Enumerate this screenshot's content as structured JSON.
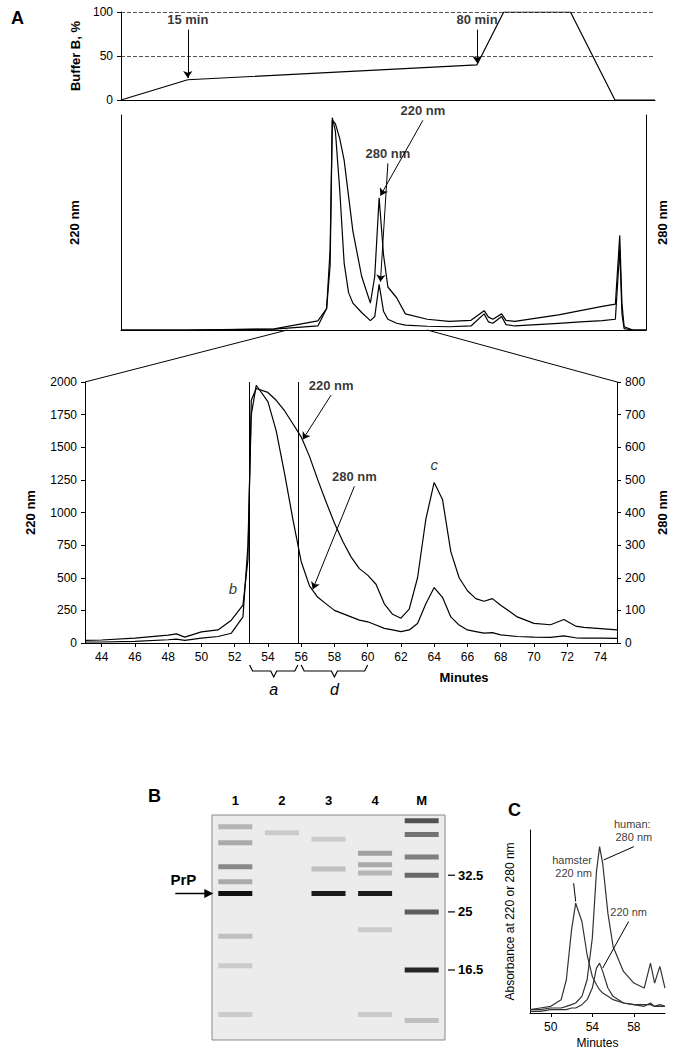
{
  "chart_data": [
    {
      "panel": "A",
      "type": "line",
      "x": [
        0,
        15,
        80,
        86,
        101,
        111,
        120
      ],
      "values": [
        0,
        23,
        40,
        100,
        100,
        0,
        0
      ],
      "color": "#000000",
      "xlim": [
        0,
        120
      ],
      "ylim": [
        0,
        100
      ],
      "yticks": [
        0,
        50,
        100
      ],
      "y_label": "Buffer B, %",
      "grid": true,
      "tick_labels": "y",
      "annotations": [
        {
          "text": "15 min",
          "at": [
            15,
            80
          ],
          "points_to": [
            15,
            25
          ]
        },
        {
          "text": "80 min",
          "at": [
            80,
            80
          ],
          "points_to": [
            80,
            42
          ]
        }
      ]
    },
    {
      "type": "line",
      "color": "#000000",
      "x": [
        5,
        20,
        40,
        50,
        52,
        52.8,
        53.3,
        54,
        55,
        56,
        57,
        58,
        60,
        62,
        63,
        64,
        65,
        66,
        68,
        70,
        75,
        80,
        85,
        88,
        89,
        90,
        92,
        93,
        95,
        100,
        105,
        110,
        115,
        118,
        119,
        119.5,
        120,
        122,
        125
      ],
      "series": [
        {
          "name": "220 nm",
          "values": [
            0,
            0,
            10,
            85,
            200,
            600,
            1950,
            1920,
            1780,
            1580,
            1250,
            920,
            500,
            250,
            500,
            1230,
            700,
            400,
            300,
            150,
            100,
            80,
            90,
            180,
            120,
            100,
            150,
            90,
            80,
            110,
            140,
            180,
            220,
            240,
            880,
            250,
            30,
            0,
            0
          ],
          "label_at": [
            74,
            1950
          ],
          "points_to": [
            64.3,
            1250
          ]
        },
        {
          "name": "280 nm",
          "axis": "y2",
          "values": [
            0,
            0,
            3,
            15,
            80,
            300,
            790,
            740,
            520,
            250,
            140,
            100,
            65,
            35,
            50,
            170,
            70,
            40,
            25,
            18,
            14,
            12,
            15,
            60,
            30,
            25,
            50,
            20,
            15,
            20,
            25,
            30,
            35,
            40,
            300,
            60,
            5,
            0,
            0
          ],
          "label_at": [
            66,
            620
          ],
          "points_to": [
            64.3,
            180
          ]
        }
      ],
      "xlim": [
        5,
        125
      ],
      "ylim": [
        0,
        2000
      ],
      "y2lim": [
        0,
        800
      ],
      "y_label": "220 nm",
      "y2_label": "280 nm",
      "tick_labels": false
    },
    {
      "type": "line",
      "color": "#000000",
      "x": [
        43,
        44,
        46,
        48,
        48.5,
        49,
        50,
        51,
        51.8,
        52.5,
        52.8,
        53,
        53.3,
        54,
        54.5,
        55,
        55.5,
        56,
        56.5,
        57,
        57.5,
        58,
        58.5,
        59,
        59.5,
        60,
        60.5,
        61,
        61.5,
        62,
        62.5,
        63,
        63.5,
        64,
        64.5,
        65,
        65.5,
        66,
        66.5,
        67,
        67.5,
        68,
        69,
        70,
        71,
        71.8,
        72.5,
        73,
        74,
        75
      ],
      "series": [
        {
          "name": "220 nm",
          "values": [
            20,
            23,
            38,
            60,
            70,
            45,
            85,
            100,
            175,
            290,
            640,
            1860,
            1950,
            1920,
            1860,
            1780,
            1680,
            1580,
            1430,
            1250,
            1080,
            920,
            780,
            660,
            570,
            520,
            450,
            300,
            220,
            190,
            260,
            500,
            950,
            1230,
            1100,
            700,
            500,
            400,
            340,
            320,
            340,
            290,
            200,
            150,
            140,
            180,
            130,
            120,
            110,
            100
          ],
          "label_at": [
            57.8,
            1900
          ],
          "points_to": [
            56.1,
            1560
          ]
        },
        {
          "name": "280 nm",
          "axis": "y2",
          "values": [
            3,
            3,
            5,
            10,
            12,
            8,
            15,
            20,
            30,
            80,
            300,
            700,
            790,
            740,
            650,
            520,
            380,
            250,
            175,
            140,
            120,
            100,
            90,
            80,
            70,
            65,
            55,
            45,
            40,
            35,
            40,
            60,
            120,
            170,
            140,
            80,
            55,
            40,
            35,
            30,
            32,
            25,
            20,
            18,
            17,
            22,
            16,
            15,
            15,
            14
          ],
          "label_at": [
            59.2,
            480
          ],
          "points_to": [
            56.7,
            165
          ]
        }
      ],
      "xlim": [
        43,
        75
      ],
      "xticks": [
        44,
        46,
        48,
        50,
        52,
        54,
        56,
        58,
        60,
        62,
        64,
        66,
        68,
        70,
        72,
        74
      ],
      "ylim": [
        0,
        2000
      ],
      "yticks": [
        0,
        250,
        500,
        750,
        1000,
        1250,
        1500,
        1750,
        2000
      ],
      "y2lim": [
        0,
        800
      ],
      "y2ticks": [
        0,
        100,
        200,
        300,
        400,
        500,
        600,
        700,
        800
      ],
      "x_label": "Minutes",
      "y_label": "220 nm",
      "y2_label": "280 nm",
      "annotations": [
        {
          "text": "b",
          "at": [
            51.9,
            330
          ]
        },
        {
          "text": "c",
          "at": [
            64,
            1280
          ]
        }
      ],
      "fractions": [
        {
          "label": "a",
          "from": 52.9,
          "to": 55.8
        },
        {
          "label": "d",
          "from": 56,
          "to": 60
        }
      ],
      "fraction_lines": [
        52.9,
        55.8
      ]
    },
    {
      "panel": "B",
      "type": "gel",
      "categories": [
        "1",
        "2",
        "3",
        "4",
        "M"
      ],
      "log": "y",
      "ylim": [
        10,
        50
      ],
      "yticks": [
        32.5,
        25,
        16.5
      ],
      "bands": [
        {
          "lane": "1",
          "kda": 46,
          "intensity": 0.25
        },
        {
          "lane": "1",
          "kda": 41,
          "intensity": 0.3
        },
        {
          "lane": "1",
          "kda": 34.5,
          "intensity": 0.45
        },
        {
          "lane": "1",
          "kda": 31,
          "intensity": 0.3
        },
        {
          "lane": "1",
          "kda": 28.5,
          "intensity": 1
        },
        {
          "lane": "1",
          "kda": 21,
          "intensity": 0.2
        },
        {
          "lane": "1",
          "kda": 17,
          "intensity": 0.15
        },
        {
          "lane": "1",
          "kda": 12,
          "intensity": 0.15
        },
        {
          "lane": "2",
          "kda": 44,
          "intensity": 0.15
        },
        {
          "lane": "3",
          "kda": 42,
          "intensity": 0.15
        },
        {
          "lane": "3",
          "kda": 34,
          "intensity": 0.2
        },
        {
          "lane": "3",
          "kda": 28.5,
          "intensity": 0.95
        },
        {
          "lane": "4",
          "kda": 38,
          "intensity": 0.35
        },
        {
          "lane": "4",
          "kda": 35,
          "intensity": 0.3
        },
        {
          "lane": "4",
          "kda": 33,
          "intensity": 0.25
        },
        {
          "lane": "4",
          "kda": 28.5,
          "intensity": 0.95
        },
        {
          "lane": "4",
          "kda": 22,
          "intensity": 0.15
        },
        {
          "lane": "4",
          "kda": 12,
          "intensity": 0.15
        },
        {
          "lane": "M",
          "kda": 48,
          "intensity": 0.7
        },
        {
          "lane": "M",
          "kda": 43.5,
          "intensity": 0.55
        },
        {
          "lane": "M",
          "kda": 37,
          "intensity": 0.5
        },
        {
          "lane": "M",
          "kda": 32.5,
          "intensity": 0.6
        },
        {
          "lane": "M",
          "kda": 25,
          "intensity": 0.65
        },
        {
          "lane": "M",
          "kda": 16.5,
          "intensity": 0.9
        },
        {
          "lane": "M",
          "kda": 11.5,
          "intensity": 0.2
        }
      ],
      "annotations": [
        {
          "text": "PrP",
          "points_to": [
            "1",
            28.5
          ]
        }
      ]
    },
    {
      "panel": "C",
      "type": "line",
      "color": "#333333",
      "x": [
        48,
        49,
        50,
        51,
        51.5,
        52,
        52.4,
        53,
        53.5,
        54,
        54.4,
        54.7,
        55,
        55.5,
        56,
        57,
        58,
        59,
        59.6,
        60,
        60.5,
        61
      ],
      "series": [
        {
          "name": "hamster 220 nm",
          "values": [
            0.02,
            0.03,
            0.04,
            0.08,
            0.2,
            0.5,
            0.66,
            0.55,
            0.35,
            0.22,
            0.17,
            0.14,
            0.12,
            0.1,
            0.08,
            0.06,
            0.05,
            0.05,
            0.05,
            0.04,
            0.04,
            0.04
          ],
          "label_at": [
            52.2,
            0.78
          ],
          "points_to": [
            52.4,
            0.67
          ]
        },
        {
          "name": "human: 280 nm",
          "values": [
            0.02,
            0.02,
            0.03,
            0.03,
            0.04,
            0.05,
            0.06,
            0.1,
            0.2,
            0.45,
            0.85,
            1.0,
            0.9,
            0.6,
            0.4,
            0.25,
            0.18,
            0.15,
            0.3,
            0.18,
            0.28,
            0.15
          ],
          "label_at": [
            58,
            1.0
          ],
          "points_to": [
            55.1,
            0.92
          ]
        },
        {
          "name": "220 nm",
          "values": [
            0.01,
            0.01,
            0.02,
            0.02,
            0.02,
            0.03,
            0.03,
            0.05,
            0.08,
            0.15,
            0.27,
            0.3,
            0.25,
            0.15,
            0.1,
            0.06,
            0.05,
            0.04,
            0.06,
            0.04,
            0.05,
            0.04
          ],
          "label_at": [
            57.5,
            0.55
          ],
          "points_to": [
            55,
            0.27
          ]
        }
      ],
      "xlim": [
        48,
        61
      ],
      "xticks": [
        50,
        54,
        58
      ],
      "ylim": [
        0,
        1.1
      ],
      "tick_labels": "x",
      "x_label": "Minutes",
      "y_label": "Absorbance at 220 or 280 nm"
    }
  ]
}
